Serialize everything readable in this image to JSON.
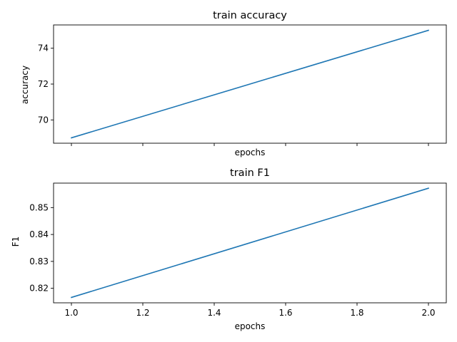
{
  "chart_data": [
    {
      "type": "line",
      "title": "train accuracy",
      "xlabel": "epochs",
      "ylabel": "accuracy",
      "xlim": [
        0.95,
        2.05
      ],
      "ylim": [
        68.7,
        75.3
      ],
      "xticks": [
        1.0,
        1.2,
        1.4,
        1.6,
        1.8,
        2.0
      ],
      "xtick_labels": [
        "",
        "",
        "",
        "",
        "",
        ""
      ],
      "yticks": [
        70,
        72,
        74
      ],
      "ytick_labels": [
        "70",
        "72",
        "74"
      ],
      "color": "#1f77b4",
      "x": [
        1.0,
        2.0
      ],
      "y": [
        69.0,
        75.0
      ],
      "grid": false
    },
    {
      "type": "line",
      "title": "train F1",
      "xlabel": "epochs",
      "ylabel": "F1",
      "xlim": [
        0.95,
        2.05
      ],
      "ylim": [
        0.8146,
        0.8591
      ],
      "xticks": [
        1.0,
        1.2,
        1.4,
        1.6,
        1.8,
        2.0
      ],
      "xtick_labels": [
        "1.0",
        "1.2",
        "1.4",
        "1.6",
        "1.8",
        "2.0"
      ],
      "yticks": [
        0.82,
        0.83,
        0.84,
        0.85
      ],
      "ytick_labels": [
        "0.82",
        "0.83",
        "0.84",
        "0.85"
      ],
      "color": "#1f77b4",
      "x": [
        1.0,
        2.0
      ],
      "y": [
        0.8166,
        0.8572
      ],
      "grid": false
    }
  ]
}
